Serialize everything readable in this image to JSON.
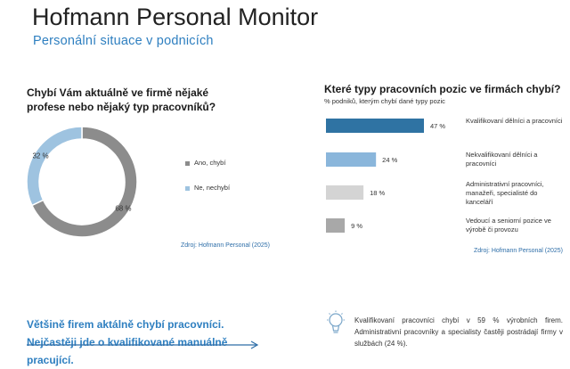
{
  "header": {
    "title": "Hofmann Personal Monitor",
    "subtitle": "Personální situace v podnicích"
  },
  "left_panel": {
    "question": "Chybí Vám aktuálně ve firmě nějaké profese nebo nějaký typ pracovníků?",
    "source": "Zdroj: Hofmann Personal (2025)"
  },
  "right_panel": {
    "question": "Které typy pracovních pozic ve firmách chybí?",
    "subtitle": "% podniků, kterým chybí dané typy pozic",
    "source": "Zdroj: Hofmann Personal (2025)"
  },
  "chart_data": [
    {
      "type": "pie",
      "variant": "donut",
      "title": "Chybí Vám aktuálně ve firmě nějaké profese nebo nějaký typ pracovníků?",
      "slices": [
        {
          "label": "Ano, chybí",
          "value": 68,
          "value_label": "68 %",
          "color": "#8c8c8c"
        },
        {
          "label": "Ne, nechybí",
          "value": 32,
          "value_label": "32 %",
          "color": "#9ec3e0"
        }
      ],
      "legend": "right"
    },
    {
      "type": "bar",
      "orientation": "horizontal",
      "title": "Které typy pracovních pozic ve firmách chybí?",
      "subtitle": "% podniků, kterým chybí dané typy pozic",
      "xlim": [
        0,
        47
      ],
      "categories": [
        "Kvalifikovaní dělníci a pracovníci",
        "Nekvalifikovaní dělníci a pracovníci",
        "Administrativní pracovníci, manažeři, specialisté do kanceláří",
        "Vedoucí a seniorní pozice ve výrobě či provozu"
      ],
      "values": [
        47,
        24,
        18,
        9
      ],
      "value_labels": [
        "47 %",
        "24 %",
        "18 %",
        "9 %"
      ],
      "colors": [
        "#2f73a3",
        "#8ab6db",
        "#d4d4d4",
        "#a8a8a8"
      ]
    }
  ],
  "footer": {
    "conclusion": "Většině firem aktálně chybí pracovníci. Nejčastěji jde o kvalifikované manuálně pracující.",
    "insight": "Kvalifikovaní pracovníci chybí v 59 % výrobních firem. Administrativní pracovníky a specialisty častěji postrádají firmy v službách (24 %).",
    "arrow_color": "#2e6ea8",
    "icon": "lightbulb-icon"
  }
}
